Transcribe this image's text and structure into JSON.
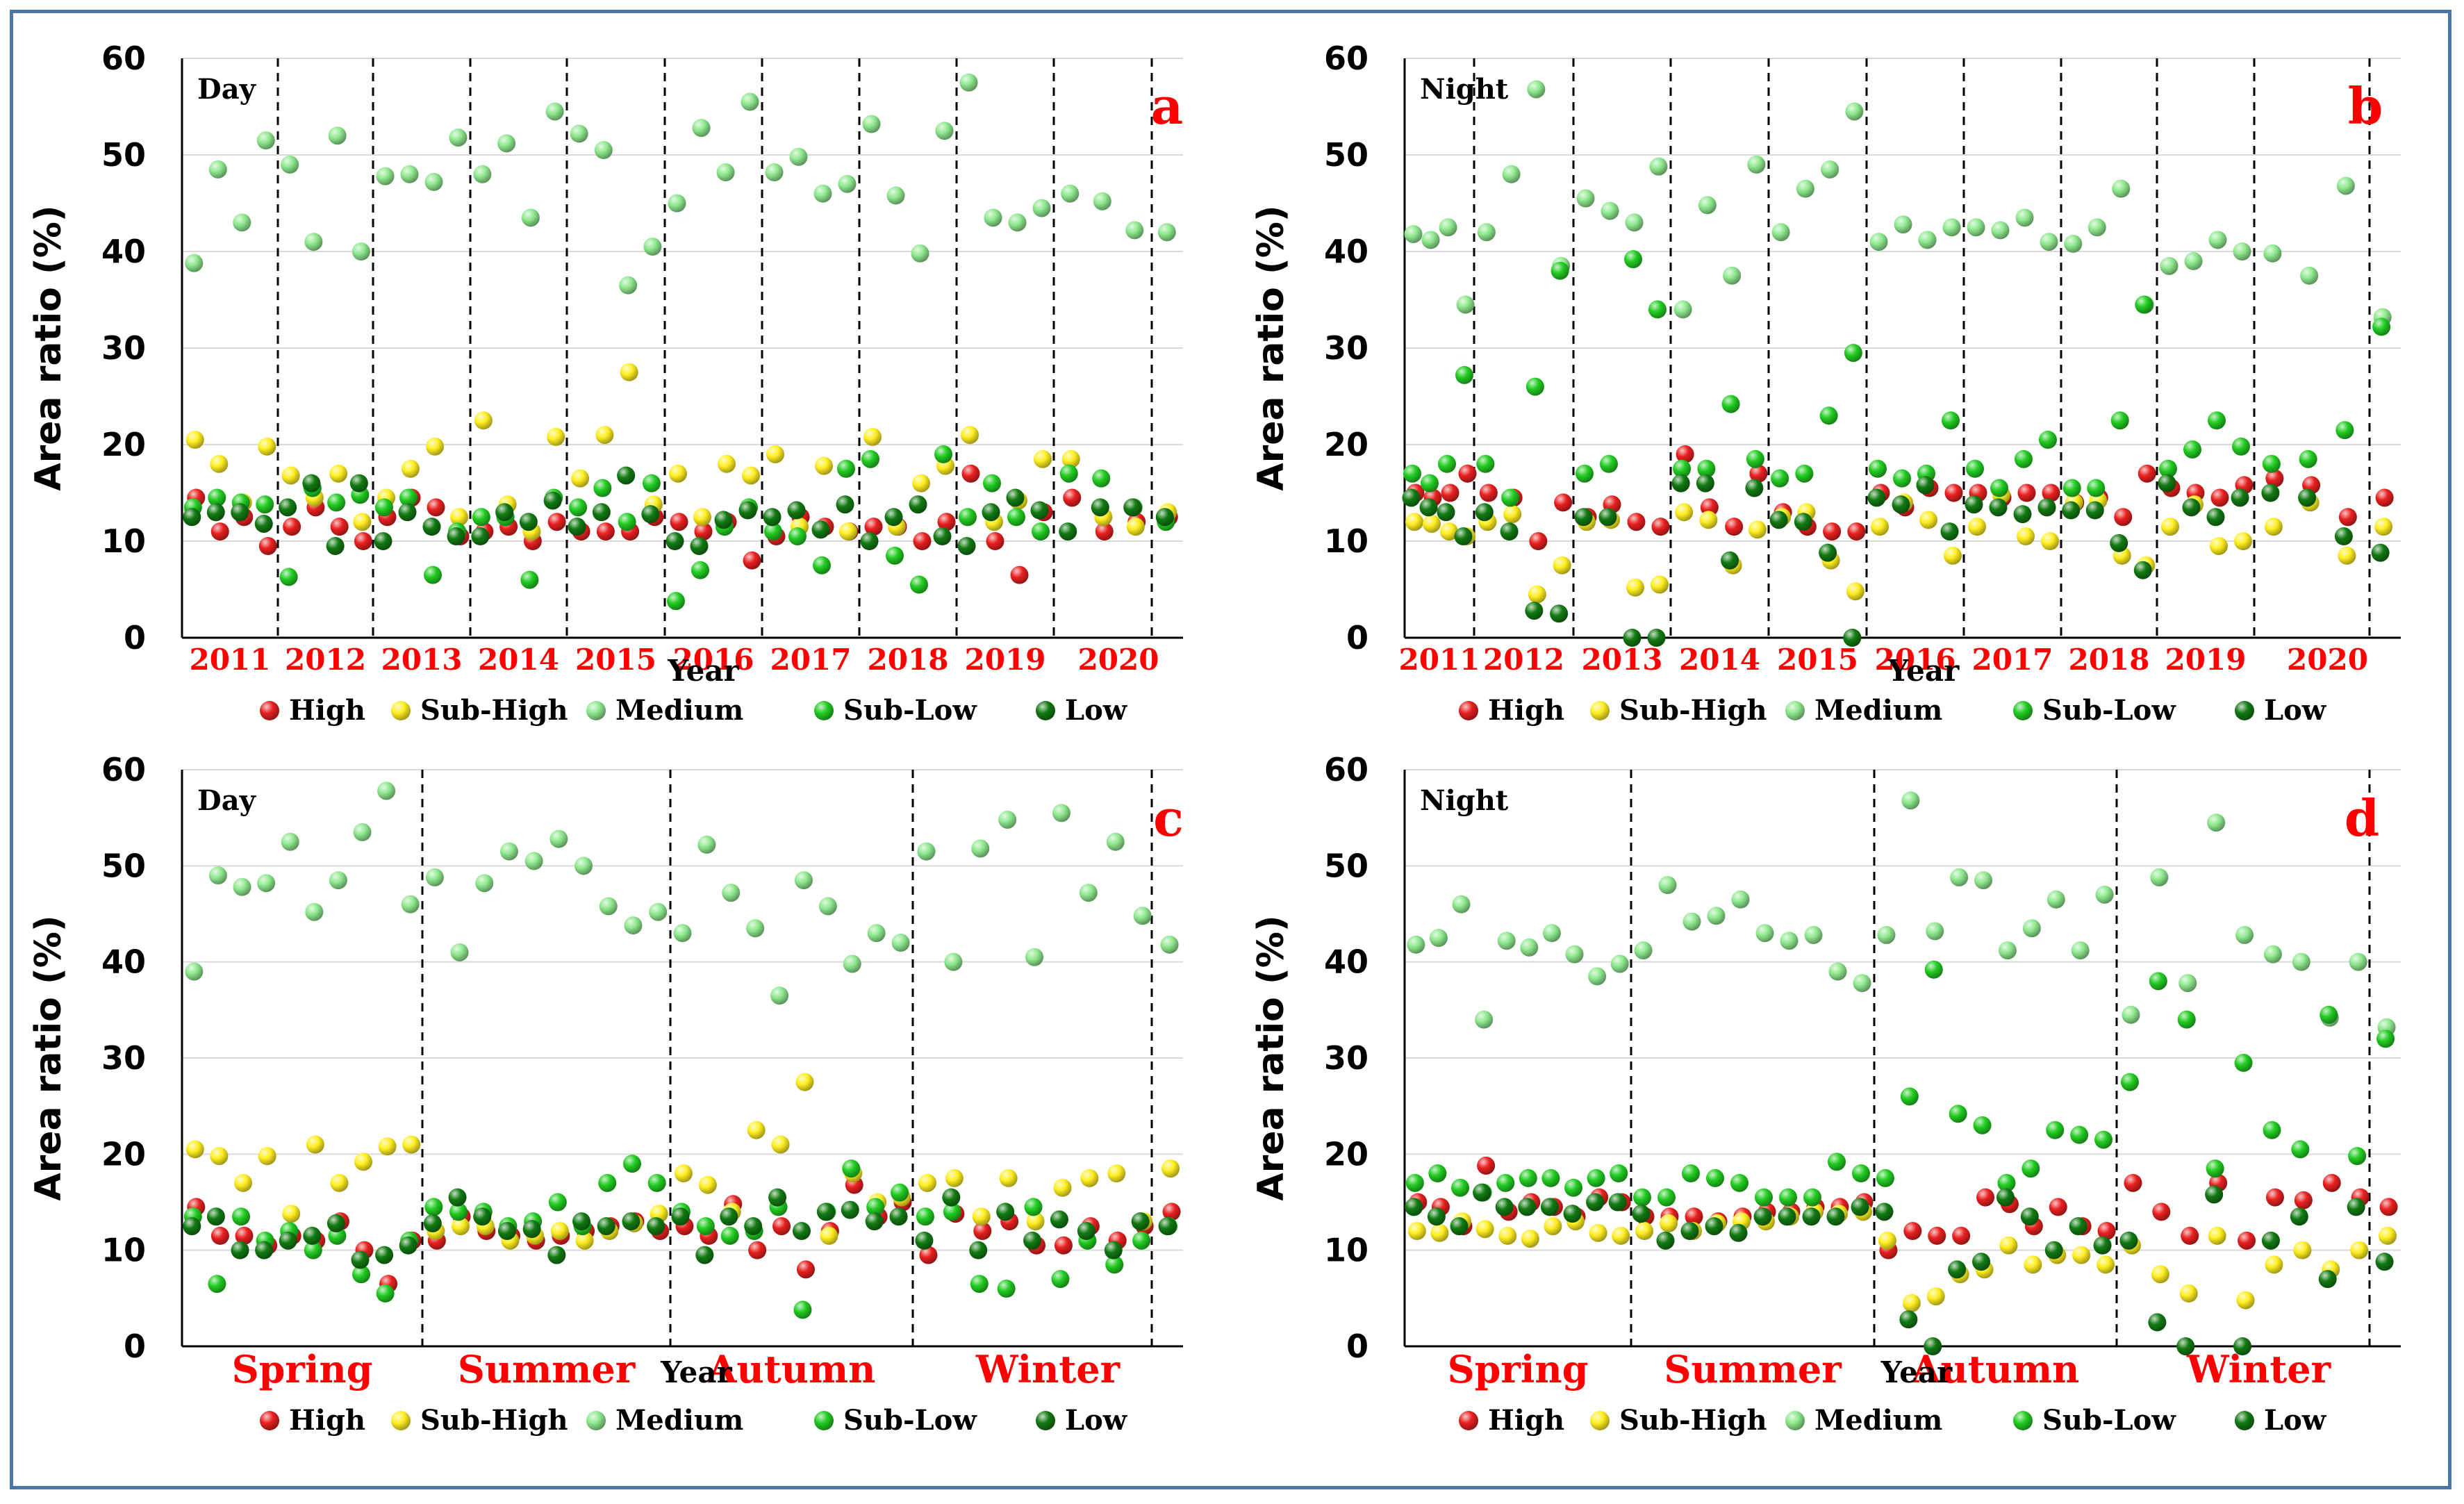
{
  "figure": {
    "xlabel": "Year",
    "ylabel": "Area ratio (%)",
    "legend": [
      "High",
      "Sub-High",
      "Medium",
      "Sub-Low",
      "Low"
    ],
    "colors": {
      "High": "#e82020",
      "Sub-High": "#ffee22",
      "Medium": "#8ee88e",
      "Sub-Low": "#22cc22",
      "Low": "#127a12",
      "frame": "#4a77a8",
      "category_text": "#ff0000"
    }
  },
  "chart_data": [
    {
      "panel": "a",
      "type": "scatter",
      "inner_label": "Day",
      "xlabel": "Year",
      "ylabel": "Area ratio (%)",
      "ylim": [
        0,
        60
      ],
      "yticks": [
        0,
        10,
        20,
        30,
        40,
        50,
        60
      ],
      "categories": [
        "2011",
        "2012",
        "2013",
        "2014",
        "2015",
        "2016",
        "2017",
        "2018",
        "2019",
        "2020"
      ],
      "points_per_group": 4,
      "series": [
        {
          "name": "High",
          "values": [
            14.5,
            11,
            12.5,
            9.5,
            11.5,
            13.5,
            11.5,
            10,
            12.5,
            14.5,
            13.5,
            10.5,
            11,
            11.5,
            10,
            12,
            11,
            11,
            11,
            12.5,
            12,
            11,
            12,
            8,
            10.5,
            12.5,
            11.5,
            11,
            11.5,
            11.5,
            10,
            12,
            17,
            10,
            6.5,
            13,
            14.5,
            11,
            12,
            12.5
          ]
        },
        {
          "name": "Sub-High",
          "values": [
            20.5,
            18,
            14,
            19.8,
            16.8,
            14.5,
            17,
            12,
            14.5,
            17.5,
            19.8,
            12.5,
            22.5,
            13.8,
            11,
            20.8,
            16.5,
            21,
            27.5,
            13.8,
            17,
            12.5,
            18,
            16.8,
            19,
            11.5,
            17.8,
            11,
            20.8,
            11.5,
            16,
            17.8,
            21,
            12,
            14.2,
            18.5,
            18.5,
            12.5,
            11.5,
            13
          ]
        },
        {
          "name": "Medium",
          "values": [
            38.8,
            48.5,
            43,
            51.5,
            49,
            41,
            52,
            40,
            47.8,
            48,
            47.2,
            51.8,
            48,
            51.2,
            43.5,
            54.5,
            52.2,
            50.5,
            36.5,
            40.5,
            45,
            52.8,
            48.2,
            55.5,
            48.2,
            49.8,
            46,
            47,
            53.2,
            45.8,
            39.8,
            52.5,
            57.5,
            43.5,
            43,
            44.5,
            46,
            45.2,
            42.2,
            42
          ]
        },
        {
          "name": "Sub-Low",
          "values": [
            13.5,
            14.5,
            14,
            13.8,
            6.3,
            15.5,
            14,
            14.8,
            13.5,
            14.5,
            6.5,
            11,
            12.5,
            12.5,
            6,
            14.5,
            13.5,
            15.5,
            12,
            16,
            3.8,
            7,
            11.5,
            13.5,
            11,
            10.5,
            7.5,
            17.5,
            18.5,
            8.5,
            5.5,
            19,
            12.5,
            16,
            12.5,
            11,
            17,
            16.5,
            13.5,
            12
          ]
        },
        {
          "name": "Low",
          "values": [
            12.5,
            13,
            13,
            11.8,
            13.5,
            16,
            9.5,
            16,
            10,
            13,
            11.5,
            10.5,
            10.5,
            13,
            12,
            14.2,
            11.5,
            13,
            16.8,
            12.8,
            10,
            9.5,
            12.2,
            13.2,
            12.5,
            13.2,
            11.2,
            13.8,
            10,
            12.5,
            13.8,
            10.5,
            9.5,
            13,
            14.5,
            13.2,
            11,
            13.5,
            13.5,
            12.5
          ]
        }
      ]
    },
    {
      "panel": "b",
      "type": "scatter",
      "inner_label": "Night",
      "xlabel": "Year",
      "ylabel": "Area ratio (%)",
      "ylim": [
        0,
        60
      ],
      "yticks": [
        0,
        10,
        20,
        30,
        40,
        50,
        60
      ],
      "categories": [
        "2011",
        "2012",
        "2013",
        "2014",
        "2015",
        "2016",
        "2017",
        "2018",
        "2019",
        "2020"
      ],
      "points_per_group": 4,
      "series": [
        {
          "name": "High",
          "values": [
            15,
            14.5,
            15,
            17,
            15,
            14.5,
            10,
            14,
            12.5,
            13.8,
            12,
            11.5,
            19,
            13.5,
            11.5,
            17,
            13,
            11.5,
            11,
            11,
            15,
            13.5,
            15.5,
            15,
            15,
            14.5,
            15,
            15,
            14,
            14.5,
            12.5,
            17,
            15.5,
            15,
            14.5,
            15.8,
            16.5,
            15.8,
            12.5,
            14.5
          ]
        },
        {
          "name": "Sub-High",
          "values": [
            12,
            11.8,
            11,
            10.5,
            12,
            12.8,
            4.5,
            7.5,
            12,
            12.2,
            5.2,
            5.5,
            13,
            12.2,
            7.5,
            11.2,
            12.5,
            13,
            8,
            4.8,
            11.5,
            14,
            12.2,
            8.5,
            11.5,
            14.8,
            10.5,
            10,
            14,
            14.2,
            8.5,
            7.5,
            11.5,
            13.8,
            9.5,
            10,
            11.5,
            14,
            8.5,
            11.5
          ]
        },
        {
          "name": "Medium",
          "values": [
            41.8,
            41.2,
            42.5,
            34.5,
            42,
            48,
            56.8,
            38.5,
            45.5,
            44.2,
            43,
            48.8,
            34,
            44.8,
            37.5,
            49,
            42,
            46.5,
            48.5,
            54.5,
            41,
            42.8,
            41.2,
            42.5,
            42.5,
            42.2,
            43.5,
            41,
            40.8,
            42.5,
            46.5,
            34.5,
            38.5,
            39,
            41.2,
            40,
            39.8,
            37.5,
            46.8,
            33.2
          ]
        },
        {
          "name": "Sub-Low",
          "values": [
            17,
            16,
            18,
            27.2,
            18,
            14.5,
            26,
            38,
            17,
            18,
            39.2,
            34,
            17.5,
            17.5,
            24.2,
            18.5,
            16.5,
            17,
            23,
            29.5,
            17.5,
            16.5,
            17,
            22.5,
            17.5,
            15.5,
            18.5,
            20.5,
            15.5,
            15.5,
            22.5,
            34.5,
            17.5,
            19.5,
            22.5,
            19.8,
            18,
            18.5,
            21.5,
            32.2
          ]
        },
        {
          "name": "Low",
          "values": [
            14.5,
            13.5,
            13,
            10.5,
            13,
            11,
            2.8,
            2.5,
            12.5,
            12.5,
            0,
            0,
            16,
            16,
            8,
            15.5,
            12.2,
            12,
            8.8,
            0,
            14.5,
            13.8,
            15.8,
            11,
            13.8,
            13.5,
            12.8,
            13.5,
            13.2,
            13.2,
            9.8,
            7,
            16,
            13.5,
            12.5,
            14.5,
            15,
            14.5,
            10.5,
            8.8
          ]
        }
      ]
    },
    {
      "panel": "c",
      "type": "scatter",
      "inner_label": "Day",
      "xlabel": "Year",
      "ylabel": "Area ratio (%)",
      "ylim": [
        0,
        60
      ],
      "yticks": [
        0,
        10,
        20,
        30,
        40,
        50,
        60
      ],
      "categories": [
        "Spring",
        "Summer",
        "Autumn",
        "Winter"
      ],
      "points_per_group": 10,
      "series": [
        {
          "name": "High",
          "values": [
            14.5,
            11.5,
            11.5,
            10.5,
            11.5,
            11,
            13,
            10,
            6.5,
            11,
            11,
            13.5,
            12,
            11.5,
            11,
            11.5,
            12,
            12.5,
            13,
            12,
            12.5,
            11.5,
            14.8,
            10,
            12.5,
            8,
            12,
            16.8,
            13.5,
            15,
            9.5,
            13.8,
            12,
            13,
            10.5,
            10.5,
            12.5,
            11,
            12.5,
            14
          ]
        },
        {
          "name": "Sub-High",
          "values": [
            20.5,
            19.8,
            17,
            19.8,
            13.8,
            21,
            17,
            19.2,
            20.8,
            21,
            12,
            12.5,
            12.5,
            11,
            11.5,
            12,
            11,
            12,
            12.8,
            13.8,
            18,
            16.8,
            14,
            22.5,
            21,
            27.5,
            11.5,
            18,
            15,
            15.5,
            17,
            17.5,
            13.5,
            17.5,
            13,
            16.5,
            17.5,
            18,
            13,
            18.5
          ]
        },
        {
          "name": "Medium",
          "values": [
            39,
            49,
            47.8,
            48.2,
            52.5,
            45.2,
            48.5,
            53.5,
            57.8,
            46,
            48.8,
            41,
            48.2,
            51.5,
            50.5,
            52.8,
            50,
            45.8,
            43.8,
            45.2,
            43,
            52.2,
            47.2,
            43.5,
            36.5,
            48.5,
            45.8,
            39.8,
            43,
            42,
            51.5,
            40,
            51.8,
            54.8,
            40.5,
            55.5,
            47.2,
            52.5,
            44.8,
            41.8
          ]
        },
        {
          "name": "Sub-Low",
          "values": [
            13.5,
            6.5,
            13.5,
            11,
            12,
            10,
            11.5,
            7.5,
            5.5,
            11,
            14.5,
            14,
            14,
            12.5,
            13,
            15,
            12.5,
            17,
            19,
            17,
            14,
            12.5,
            11.5,
            12,
            14.5,
            3.8,
            14,
            18.5,
            14.5,
            16,
            13.5,
            14,
            6.5,
            6,
            14.5,
            7,
            11,
            8.5,
            11,
            12.5
          ]
        },
        {
          "name": "Low",
          "values": [
            12.5,
            13.5,
            10,
            10,
            11,
            11.5,
            12.8,
            9,
            9.5,
            10.5,
            12.8,
            15.5,
            13.5,
            12,
            12.2,
            9.5,
            13,
            12.5,
            13,
            12.5,
            13.5,
            9.5,
            13.5,
            12.5,
            15.5,
            12,
            14,
            14.2,
            13,
            13.5,
            11,
            15.5,
            10,
            14,
            11,
            13.2,
            12,
            10,
            13,
            12.5
          ]
        }
      ]
    },
    {
      "panel": "d",
      "type": "scatter",
      "inner_label": "Night",
      "xlabel": "Year",
      "ylabel": "Area ratio (%)",
      "ylim": [
        0,
        60
      ],
      "yticks": [
        0,
        10,
        20,
        30,
        40,
        50,
        60
      ],
      "categories": [
        "Spring",
        "Summer",
        "Autumn",
        "Winter"
      ],
      "points_per_group": 10,
      "series": [
        {
          "name": "High",
          "values": [
            15,
            14.5,
            12.5,
            18.8,
            14,
            15,
            14.5,
            13.5,
            15.5,
            15,
            13.5,
            13.5,
            13.5,
            13,
            13.5,
            14,
            14,
            14.5,
            14.5,
            15,
            10,
            12,
            11.5,
            11.5,
            15.5,
            14.8,
            12.5,
            14.5,
            12.5,
            12,
            17,
            14,
            11.5,
            17,
            11,
            15.5,
            15.2,
            17,
            15.5,
            14.5
          ]
        },
        {
          "name": "Sub-High",
          "values": [
            12,
            11.8,
            13,
            12.2,
            11.5,
            11.2,
            12.5,
            13,
            11.8,
            11.5,
            12,
            12.8,
            12,
            12.8,
            13,
            13,
            13.5,
            14,
            13.8,
            14,
            11,
            4.5,
            5.2,
            7.5,
            8,
            10.5,
            8.5,
            9.5,
            9.5,
            8.5,
            10.5,
            7.5,
            5.5,
            11.5,
            4.8,
            8.5,
            10,
            8,
            10,
            11.5
          ]
        },
        {
          "name": "Medium",
          "values": [
            41.8,
            42.5,
            46,
            34,
            42.2,
            41.5,
            43,
            40.8,
            38.5,
            39.8,
            41.2,
            48,
            44.2,
            44.8,
            46.5,
            43,
            42.2,
            42.8,
            39,
            37.8,
            42.8,
            56.8,
            43.2,
            48.8,
            48.5,
            41.2,
            43.5,
            46.5,
            41.2,
            47,
            34.5,
            48.8,
            37.8,
            54.5,
            42.8,
            40.8,
            40,
            34.2,
            40,
            33.2
          ]
        },
        {
          "name": "Sub-Low",
          "values": [
            17,
            18,
            16.5,
            16,
            17,
            17.5,
            17.5,
            16.5,
            17.5,
            18,
            15.5,
            15.5,
            18,
            17.5,
            17,
            15.5,
            15.5,
            15.5,
            19.2,
            18,
            17.5,
            26,
            39.2,
            24.2,
            23,
            17,
            18.5,
            22.5,
            22,
            21.5,
            27.5,
            38,
            34,
            18.5,
            29.5,
            22.5,
            20.5,
            34.5,
            19.8,
            32
          ]
        },
        {
          "name": "Low",
          "values": [
            14.5,
            13.5,
            12.5,
            16,
            14.5,
            14.5,
            14.5,
            13.8,
            15,
            15,
            13.8,
            11,
            12,
            12.5,
            11.8,
            13.5,
            13.5,
            13.5,
            13.5,
            14.5,
            14,
            2.8,
            0,
            8,
            8.8,
            15.5,
            13.5,
            10,
            12.5,
            10.5,
            11,
            2.5,
            0,
            15.8,
            0,
            11,
            13.5,
            7,
            14.5,
            8.8
          ]
        }
      ]
    }
  ]
}
